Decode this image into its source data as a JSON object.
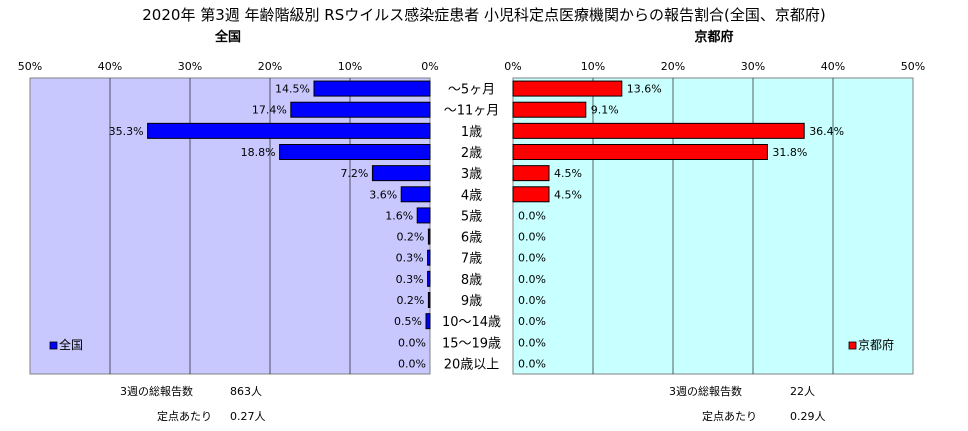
{
  "title": "2020年 第3週 年齢階級別 RSウイルス感染症患者 小児科定点医療機関からの報告割合(全国、京都府)",
  "chart_data": {
    "type": "bar",
    "orientation": "horizontal",
    "categories": [
      "〜5ヶ月",
      "〜11ヶ月",
      "1歳",
      "2歳",
      "3歳",
      "4歳",
      "5歳",
      "6歳",
      "7歳",
      "8歳",
      "9歳",
      "10〜14歳",
      "15〜19歳",
      "20歳以上"
    ],
    "xlim": [
      0,
      50
    ],
    "tick_values": [
      0,
      10,
      20,
      30,
      40,
      50
    ],
    "tick_labels": [
      "0%",
      "10%",
      "20%",
      "30%",
      "40%",
      "50%"
    ],
    "grid": true,
    "series": [
      {
        "name": "全国",
        "panel_title": "全国",
        "color": "#0000ff",
        "plot_background": "#c8c8ff",
        "legend_position": "bottom-left",
        "values": [
          14.5,
          17.4,
          35.3,
          18.8,
          7.2,
          3.6,
          1.6,
          0.2,
          0.3,
          0.3,
          0.2,
          0.5,
          0.0,
          0.0
        ],
        "labels": [
          "14.5%",
          "17.4%",
          "35.3%",
          "18.8%",
          "7.2%",
          "3.6%",
          "1.6%",
          "0.2%",
          "0.3%",
          "0.3%",
          "0.2%",
          "0.5%",
          "0.0%",
          "0.0%"
        ]
      },
      {
        "name": "京都府",
        "panel_title": "京都府",
        "color": "#ff0000",
        "plot_background": "#c8ffff",
        "legend_position": "bottom-right",
        "values": [
          13.6,
          9.1,
          36.4,
          31.8,
          4.5,
          4.5,
          0.0,
          0.0,
          0.0,
          0.0,
          0.0,
          0.0,
          0.0,
          0.0
        ],
        "labels": [
          "13.6%",
          "9.1%",
          "36.4%",
          "31.8%",
          "4.5%",
          "4.5%",
          "0.0%",
          "0.0%",
          "0.0%",
          "0.0%",
          "0.0%",
          "0.0%",
          "0.0%",
          "0.0%"
        ]
      }
    ]
  },
  "stats": {
    "left": {
      "total_label": "3週の総報告数",
      "total_value": "863人",
      "per_label": "定点あたり",
      "per_value": "0.27人"
    },
    "right": {
      "total_label": "3週の総報告数",
      "total_value": "22人",
      "per_label": "定点あたり",
      "per_value": "0.29人"
    }
  }
}
